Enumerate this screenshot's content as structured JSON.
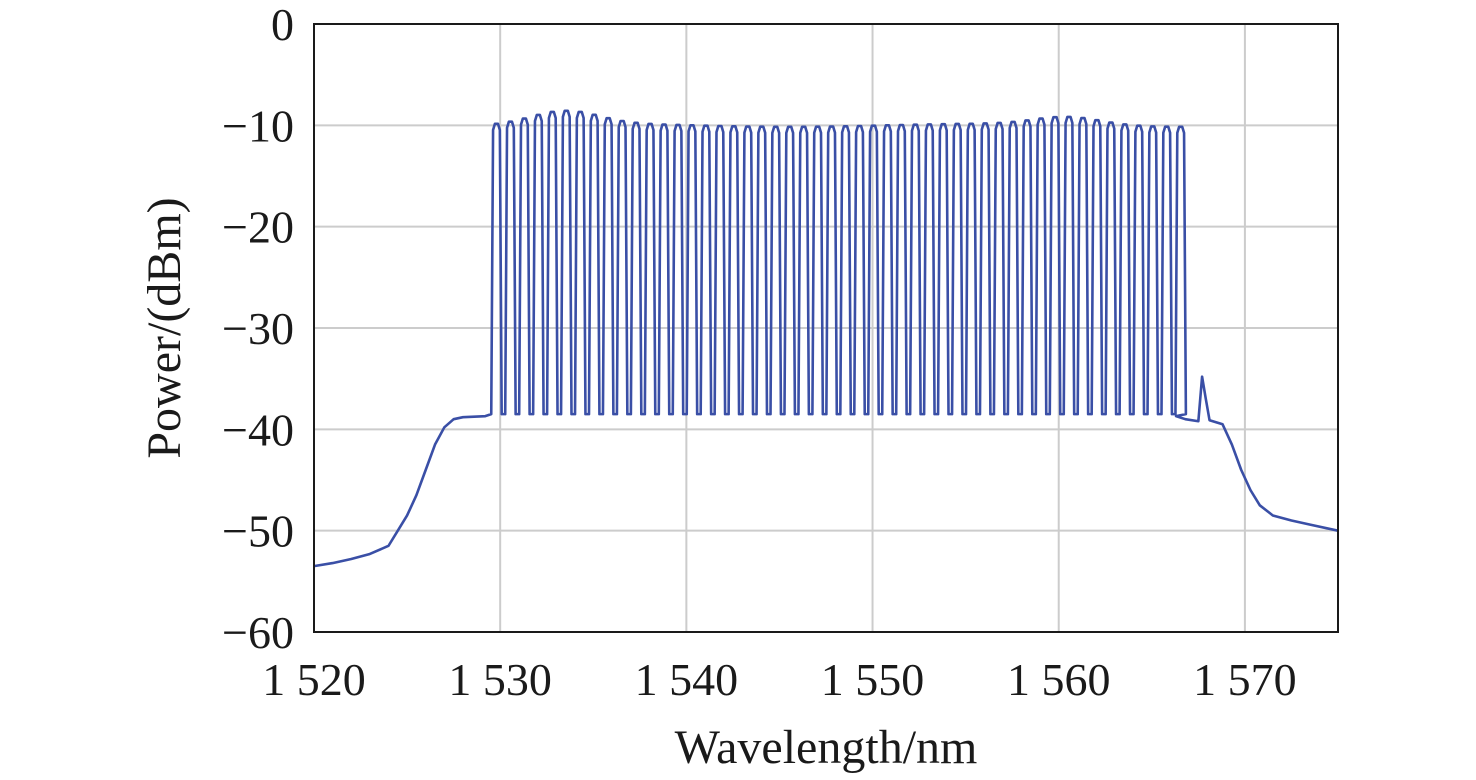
{
  "chart_data": {
    "type": "line",
    "xlabel": "Wavelength/nm",
    "ylabel": "Power/(dBm)",
    "xlim": [
      1520,
      1575
    ],
    "ylim": [
      -60,
      0
    ],
    "x_ticks": [
      1520,
      1530,
      1540,
      1550,
      1560,
      1570
    ],
    "x_tick_labels": [
      "1 520",
      "1 530",
      "1 540",
      "1 550",
      "1 560",
      "1 570"
    ],
    "y_ticks": [
      0,
      -10,
      -20,
      -30,
      -40,
      -50,
      -60
    ],
    "y_tick_labels": [
      "0",
      "−10",
      "−20",
      "−30",
      "−40",
      "−50",
      "−60"
    ],
    "grid": true,
    "line_color": "#3a4fa6",
    "series": [
      {
        "comb": {
          "channel_count": 50,
          "first_channel_nm": 1529.8,
          "channel_spacing_nm": 0.75,
          "peak_dbm_range": [
            -8.5,
            -10.0
          ],
          "floor_dbm": -38.5
        },
        "envelope": [
          [
            1520,
            -53.5
          ],
          [
            1521,
            -53.2
          ],
          [
            1522,
            -52.8
          ],
          [
            1523,
            -52.3
          ],
          [
            1524,
            -51.5
          ],
          [
            1524.5,
            -50.0
          ],
          [
            1525,
            -48.5
          ],
          [
            1525.5,
            -46.5
          ],
          [
            1526,
            -44.0
          ],
          [
            1526.5,
            -41.5
          ],
          [
            1527,
            -39.8
          ],
          [
            1527.5,
            -39.0
          ],
          [
            1528,
            -38.8
          ],
          [
            1529.2,
            -38.7
          ],
          [
            1566.3,
            -38.7
          ],
          [
            1566.8,
            -39.0
          ],
          [
            1567.5,
            -39.2
          ],
          [
            1567.7,
            -34.8
          ],
          [
            1567.9,
            -37.0
          ],
          [
            1568.1,
            -39.1
          ],
          [
            1568.8,
            -39.5
          ],
          [
            1569.3,
            -41.5
          ],
          [
            1569.8,
            -44.0
          ],
          [
            1570.3,
            -46.0
          ],
          [
            1570.8,
            -47.5
          ],
          [
            1571.5,
            -48.5
          ],
          [
            1572.5,
            -49.0
          ],
          [
            1573.5,
            -49.4
          ],
          [
            1575,
            -50.0
          ]
        ]
      }
    ]
  }
}
